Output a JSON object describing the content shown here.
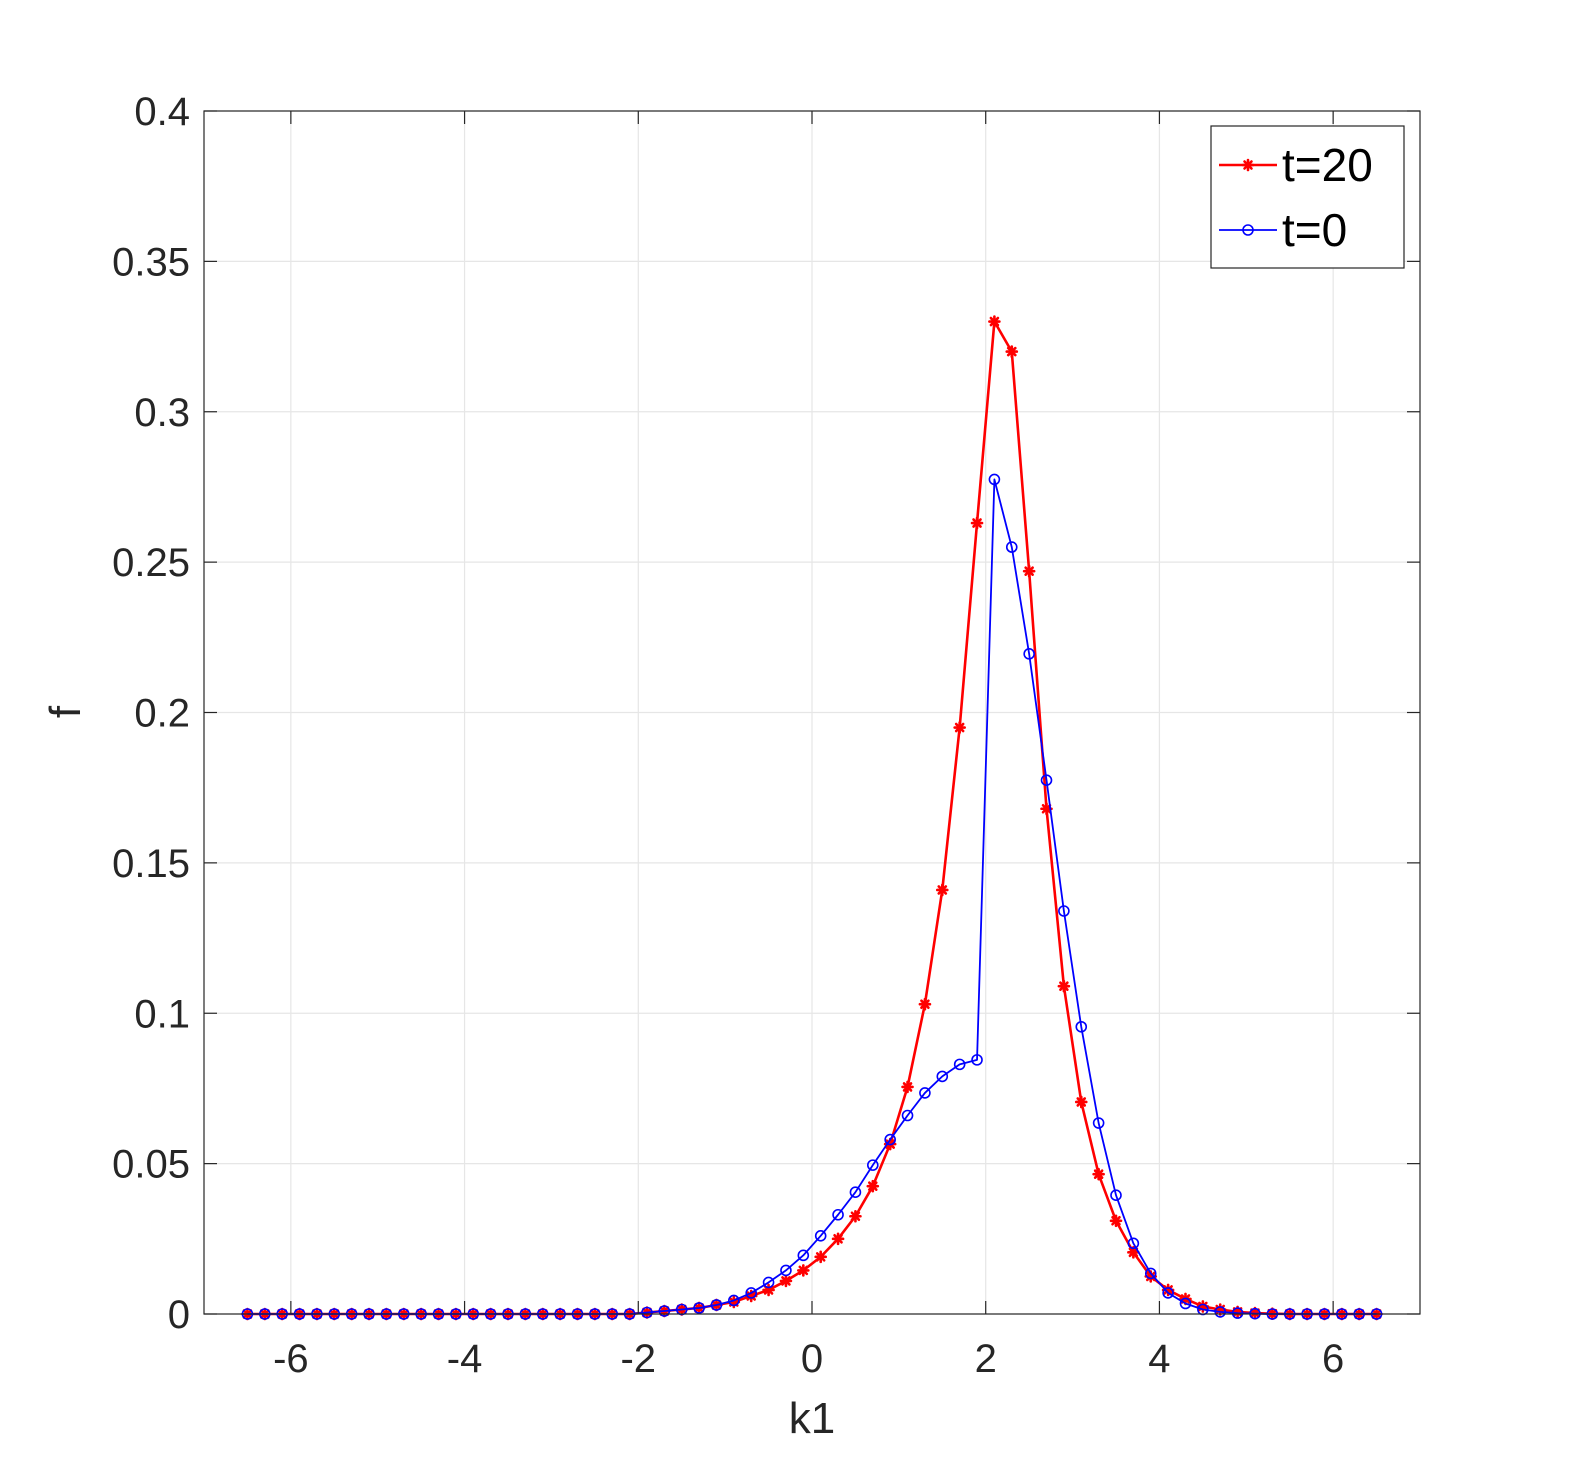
{
  "chart_data": {
    "type": "line",
    "title": "",
    "xlabel": "k1",
    "ylabel": "f",
    "xlim": [
      -7,
      7
    ],
    "ylim": [
      0,
      0.4
    ],
    "xticks": [
      -6,
      -4,
      -2,
      0,
      2,
      4,
      6
    ],
    "xtick_labels": [
      "-6",
      "-4",
      "-2",
      "0",
      "2",
      "4",
      "6"
    ],
    "yticks": [
      0,
      0.05,
      0.1,
      0.15,
      0.2,
      0.25,
      0.3,
      0.35,
      0.4
    ],
    "ytick_labels": [
      "0",
      "0.05",
      "0.1",
      "0.15",
      "0.2",
      "0.25",
      "0.3",
      "0.35",
      "0.4"
    ],
    "grid": true,
    "legend_position": "top-right",
    "x": [
      -6.5,
      -6.3,
      -6.1,
      -5.9,
      -5.7,
      -5.5,
      -5.3,
      -5.1,
      -4.9,
      -4.7,
      -4.5,
      -4.3,
      -4.1,
      -3.9,
      -3.7,
      -3.5,
      -3.3,
      -3.1,
      -2.9,
      -2.7,
      -2.5,
      -2.3,
      -2.1,
      -1.9,
      -1.7,
      -1.5,
      -1.3,
      -1.1,
      -0.9,
      -0.7,
      -0.5,
      -0.3,
      -0.1,
      0.1,
      0.3,
      0.5,
      0.7,
      0.9,
      1.1,
      1.3,
      1.5,
      1.7,
      1.9,
      2.1,
      2.3,
      2.5,
      2.7,
      2.9,
      3.1,
      3.3,
      3.5,
      3.7,
      3.9,
      4.1,
      4.3,
      4.5,
      4.7,
      4.9,
      5.1,
      5.3,
      5.5,
      5.7,
      5.9,
      6.1,
      6.3,
      6.5
    ],
    "series": [
      {
        "name": "t=20",
        "color": "#ff0000",
        "marker": "asterisk",
        "values": [
          0,
          0,
          0,
          0,
          0,
          0,
          0,
          0,
          0,
          0,
          0,
          0,
          0,
          0,
          0,
          0,
          0,
          0,
          0,
          0,
          0,
          0,
          0,
          0.0005,
          0.001,
          0.0015,
          0.002,
          0.003,
          0.004,
          0.006,
          0.008,
          0.011,
          0.0145,
          0.019,
          0.025,
          0.0325,
          0.0425,
          0.0565,
          0.0755,
          0.103,
          0.141,
          0.195,
          0.263,
          0.33,
          0.32,
          0.247,
          0.168,
          0.109,
          0.0705,
          0.0465,
          0.031,
          0.0205,
          0.0125,
          0.008,
          0.005,
          0.0025,
          0.0015,
          0.0007,
          0.0003,
          0.0001,
          0,
          0,
          0,
          0,
          0,
          0
        ]
      },
      {
        "name": "t=0",
        "color": "#0000ff",
        "marker": "circle",
        "values": [
          0,
          0,
          0,
          0,
          0,
          0,
          0,
          0,
          0,
          0,
          0,
          0,
          0,
          0,
          0,
          0,
          0,
          0,
          0,
          0,
          0,
          0,
          0,
          0.0005,
          0.001,
          0.0015,
          0.002,
          0.003,
          0.0045,
          0.007,
          0.0105,
          0.0145,
          0.0195,
          0.026,
          0.033,
          0.0405,
          0.0495,
          0.058,
          0.066,
          0.0735,
          0.079,
          0.083,
          0.0845,
          0.2775,
          0.255,
          0.2195,
          0.1775,
          0.134,
          0.0955,
          0.0635,
          0.0395,
          0.0235,
          0.0135,
          0.007,
          0.0035,
          0.0015,
          0.0007,
          0.0003,
          0.0001,
          0,
          0,
          0,
          0,
          0,
          0,
          0
        ]
      }
    ]
  }
}
